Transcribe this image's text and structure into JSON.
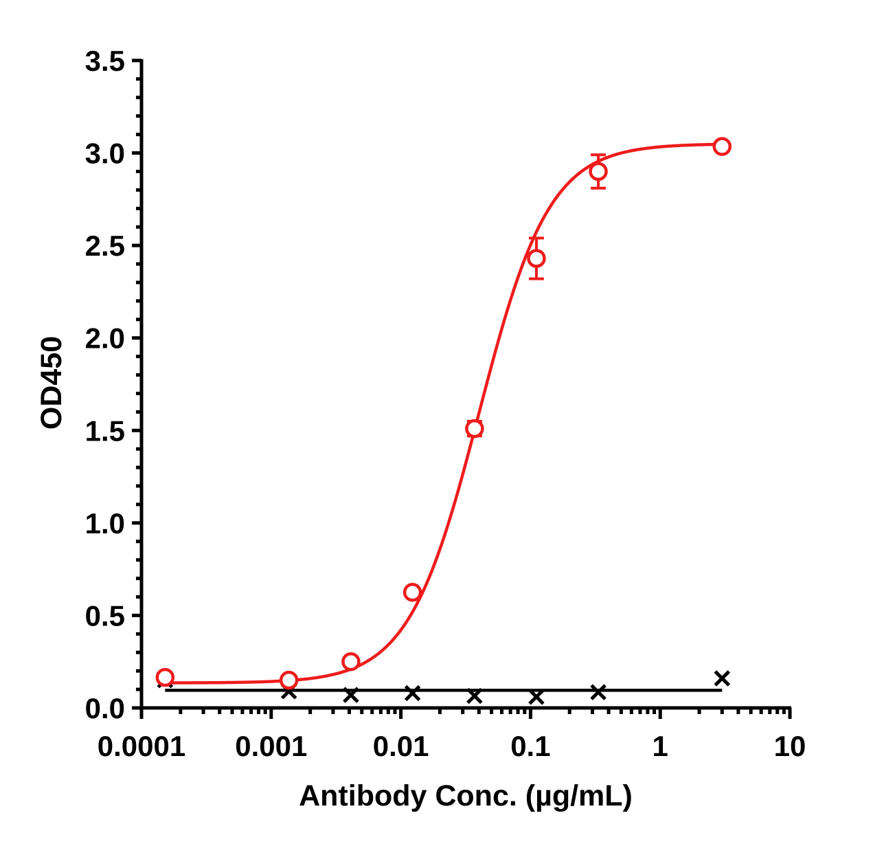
{
  "chart_data": {
    "type": "scatter",
    "xlabel": "Antibody Conc. (µg/mL)",
    "ylabel": "OD450",
    "x_scale": "log",
    "xlim": [
      0.0001,
      10
    ],
    "ylim": [
      0,
      3.5
    ],
    "x_tick_labels": [
      "0.0001",
      "0.001",
      "0.01",
      "0.1",
      "1",
      "10"
    ],
    "y_tick_labels": [
      "0.0",
      "0.5",
      "1.0",
      "1.5",
      "2.0",
      "2.5",
      "3.0",
      "3.5"
    ],
    "grid": false,
    "legend": "none",
    "colors": {
      "series1": "#ee1c1c",
      "series2": "#000000"
    },
    "series": [
      {
        "marker": "open-circle",
        "color": "#ee1c1c",
        "x": [
          0.000152,
          0.00137,
          0.00412,
          0.0123,
          0.037,
          0.111,
          0.333,
          3
        ],
        "y": [
          0.165,
          0.15,
          0.25,
          0.625,
          1.51,
          2.43,
          2.9,
          3.035
        ],
        "error": [
          0,
          0,
          0,
          0,
          0.04,
          0.11,
          0.09,
          0
        ],
        "fit": {
          "model": "4PL",
          "bottom": 0.135,
          "top": 3.05,
          "ec50": 0.04,
          "hill": 1.6
        }
      },
      {
        "marker": "x",
        "color": "#000000",
        "x": [
          0.000152,
          0.00137,
          0.00412,
          0.0123,
          0.037,
          0.111,
          0.333,
          3
        ],
        "y": [
          0.15,
          0.09,
          0.07,
          0.08,
          0.065,
          0.06,
          0.085,
          0.16
        ],
        "fit_line_y": 0.095
      }
    ]
  }
}
